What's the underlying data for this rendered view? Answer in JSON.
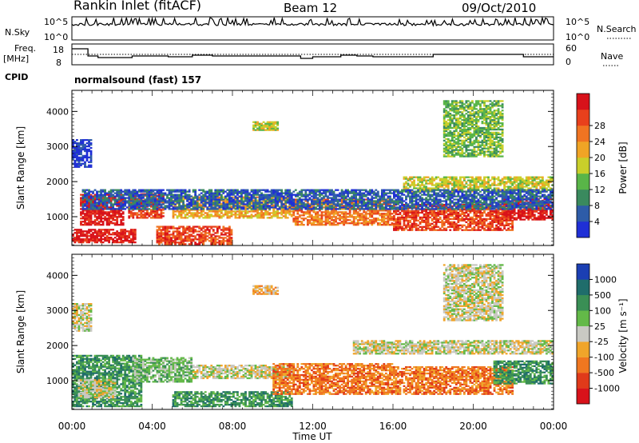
{
  "header": {
    "station": "Rankin Inlet (fitACF)",
    "beam": "Beam 12",
    "date": "09/Oct/2010"
  },
  "nsky_panel": {
    "label": "N.Sky",
    "right_label": "N.Search",
    "left_ticks": [
      "10^5",
      "10^0"
    ],
    "right_ticks": [
      "10^5",
      "10^0"
    ]
  },
  "freq_panel": {
    "label_line1": "Freq.",
    "label_line2": "[MHz]",
    "left_ticks": [
      "18",
      "8"
    ],
    "right_ticks": [
      "60",
      "0"
    ],
    "right_label": "Nave"
  },
  "cpid": {
    "label": "CPID",
    "mode": "normalsound (fast) 157"
  },
  "colors": {
    "power": [
      "#1f2fd6",
      "#2e5ca8",
      "#3a8a5e",
      "#59b548",
      "#c9cf2a",
      "#f0a425",
      "#f07422",
      "#e8401c",
      "#d8121a"
    ],
    "velocity": [
      "#1b3fb3",
      "#1f6d6b",
      "#3a8f55",
      "#63b948",
      "#c9c9c3",
      "#f0a52a",
      "#f07720",
      "#e03a1a",
      "#d8121a"
    ]
  },
  "chart_data": [
    {
      "type": "heatmap",
      "name": "power-panel",
      "ylabel": "Slant Range [km]",
      "xlabel": "",
      "x_range_hours": [
        0,
        24
      ],
      "xticks": [
        "00:00",
        "04:00",
        "08:00",
        "12:00",
        "16:00",
        "20:00",
        "00:00"
      ],
      "ylim": [
        180,
        4600
      ],
      "yticks": [
        1000,
        2000,
        3000,
        4000
      ],
      "colorbar": {
        "label": "Power [dB]",
        "ticks": [
          "4",
          "8",
          "12",
          "16",
          "20",
          "24",
          "28"
        ]
      },
      "regions": [
        {
          "x0": 0.0,
          "x1": 3.2,
          "r0": 250,
          "r1": 650,
          "level": 8
        },
        {
          "x0": 0.4,
          "x1": 2.6,
          "r0": 750,
          "r1": 1650,
          "level": 8
        },
        {
          "x0": 2.8,
          "x1": 4.6,
          "r0": 950,
          "r1": 1650,
          "level": 7
        },
        {
          "x0": 4.2,
          "x1": 8.0,
          "r0": 200,
          "r1": 700,
          "level": 7
        },
        {
          "x0": 5.0,
          "x1": 11.0,
          "r0": 950,
          "r1": 1550,
          "level": 5
        },
        {
          "x0": 11.0,
          "x1": 16.0,
          "r0": 750,
          "r1": 1500,
          "level": 6
        },
        {
          "x0": 16.0,
          "x1": 22.0,
          "r0": 600,
          "r1": 1350,
          "level": 7
        },
        {
          "x0": 21.5,
          "x1": 24.0,
          "r0": 900,
          "r1": 1500,
          "level": 8
        },
        {
          "x0": 16.5,
          "x1": 24.0,
          "r0": 1700,
          "r1": 2150,
          "level": 4
        },
        {
          "x0": 0.5,
          "x1": 24.0,
          "r0": 1200,
          "r1": 1750,
          "level": 1
        },
        {
          "x0": 9.0,
          "x1": 10.3,
          "r0": 3450,
          "r1": 3700,
          "level": 4
        },
        {
          "x0": 18.5,
          "x1": 21.5,
          "r0": 2700,
          "r1": 4300,
          "level": 3
        },
        {
          "x0": 0.0,
          "x1": 1.0,
          "r0": 2400,
          "r1": 3200,
          "level": 0
        }
      ]
    },
    {
      "type": "heatmap",
      "name": "velocity-panel",
      "ylabel": "Slant Range [km]",
      "xlabel": "Time UT",
      "x_range_hours": [
        0,
        24
      ],
      "xticks": [
        "00:00",
        "04:00",
        "08:00",
        "12:00",
        "16:00",
        "20:00",
        "00:00"
      ],
      "ylim": [
        180,
        4600
      ],
      "yticks": [
        1000,
        2000,
        3000,
        4000
      ],
      "colorbar": {
        "label": "Velocity [m s⁻¹]",
        "ticks": [
          "1000",
          "500",
          "100",
          "25",
          "-25",
          "-100",
          "-500",
          "-1000"
        ]
      },
      "regions": [
        {
          "x0": 0.0,
          "x1": 3.5,
          "r0": 250,
          "r1": 1700,
          "level": 2
        },
        {
          "x0": 0.3,
          "x1": 2.2,
          "r0": 500,
          "r1": 1000,
          "level": 4
        },
        {
          "x0": 3.0,
          "x1": 6.0,
          "r0": 950,
          "r1": 1650,
          "level": 3
        },
        {
          "x0": 5.0,
          "x1": 11.0,
          "r0": 250,
          "r1": 700,
          "level": 2
        },
        {
          "x0": 6.0,
          "x1": 11.0,
          "r0": 1050,
          "r1": 1450,
          "level": 4
        },
        {
          "x0": 10.0,
          "x1": 16.0,
          "r0": 600,
          "r1": 1500,
          "level": 6
        },
        {
          "x0": 16.0,
          "x1": 22.0,
          "r0": 600,
          "r1": 1400,
          "level": 6
        },
        {
          "x0": 21.0,
          "x1": 24.0,
          "r0": 900,
          "r1": 1550,
          "level": 2
        },
        {
          "x0": 14.0,
          "x1": 24.0,
          "r0": 1750,
          "r1": 2150,
          "level": 4
        },
        {
          "x0": 9.0,
          "x1": 10.3,
          "r0": 3450,
          "r1": 3700,
          "level": 5
        },
        {
          "x0": 18.5,
          "x1": 21.5,
          "r0": 2700,
          "r1": 4300,
          "level": 4
        },
        {
          "x0": 0.0,
          "x1": 1.0,
          "r0": 2400,
          "r1": 3200,
          "level": 4
        }
      ]
    }
  ]
}
